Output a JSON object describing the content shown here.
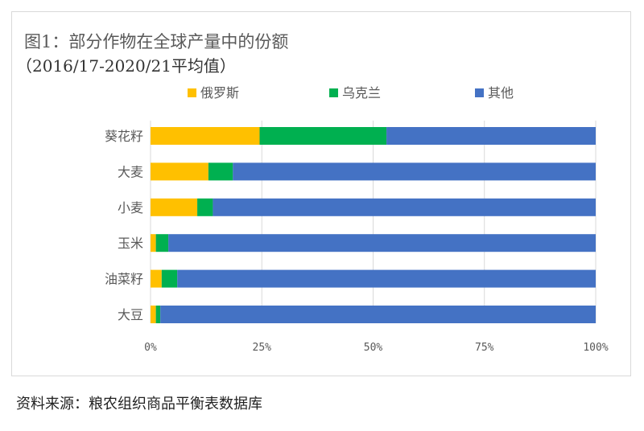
{
  "title": "图1：部分作物在全球产量中的份额",
  "subtitle": "（2016/17-2020/21平均值）",
  "source": "资料来源：粮农组织商品平衡表数据库",
  "chart_data": {
    "type": "bar",
    "orientation": "horizontal",
    "stacked": "100%",
    "categories": [
      "葵花籽",
      "大麦",
      "小麦",
      "玉米",
      "油菜籽",
      "大豆"
    ],
    "series": [
      {
        "name": "俄罗斯",
        "color": "#FFC000",
        "values": [
          24.5,
          13,
          10.5,
          1.2,
          2.5,
          1.2
        ]
      },
      {
        "name": "乌克兰",
        "color": "#00B050",
        "values": [
          28.5,
          5.5,
          3.5,
          2.8,
          3.5,
          1.0
        ]
      },
      {
        "name": "其他",
        "color": "#4472C4",
        "values": [
          47,
          81.5,
          86,
          96,
          94,
          97.8
        ]
      }
    ],
    "xlim": [
      0,
      100
    ],
    "x_ticks": [
      "0%",
      "25%",
      "50%",
      "75%",
      "100%"
    ],
    "grid": "vertical",
    "legend_position": "top"
  }
}
